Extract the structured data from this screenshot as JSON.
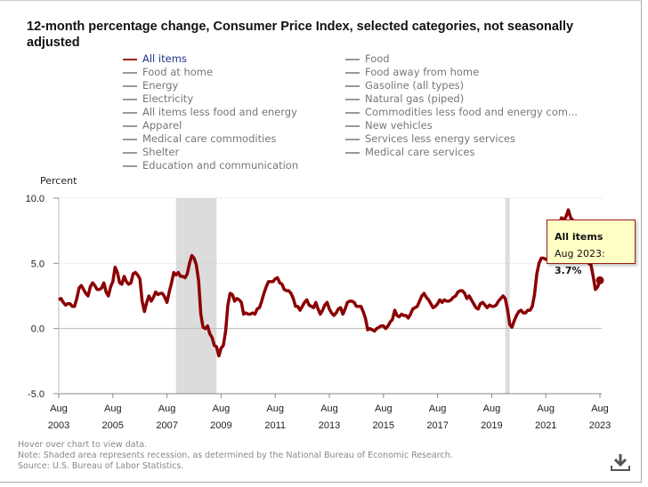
{
  "title": "12-month percentage change, Consumer Price Index, selected categories, not seasonally adjusted",
  "legend": {
    "left": [
      "All items",
      "Food at home",
      "Energy",
      "Electricity",
      "All items less food and energy",
      "Apparel",
      "Medical care commodities",
      "Shelter",
      "Education and communication"
    ],
    "right": [
      "Food",
      "Food away from home",
      "Gasoline (all types)",
      "Natural gas (piped)",
      "Commodities less food and energy com...",
      "New vehicles",
      "Services less energy services",
      "Medical care services"
    ]
  },
  "notes": [
    "Hover over chart to view data.",
    "Note: Shaded area represents recession, as determined by the National Bureau of Economic Research.",
    "Source: U.S. Bureau of Labor Statistics."
  ],
  "tooltip": {
    "series": "All items",
    "label": "Aug 2023: ",
    "value": "3.7%"
  },
  "icons": {
    "download": "download-icon"
  },
  "colors": {
    "series": "#8b0000",
    "recession": "#dcdcdc",
    "tooltip_bg": "#ffffc6"
  },
  "chart_data": {
    "type": "line",
    "title": "12-month percentage change, Consumer Price Index, selected categories, not seasonally adjusted",
    "ylabel": "Percent",
    "ylim": [
      -5,
      10
    ],
    "yticks": [
      "10.0",
      "5.0",
      "0.0",
      "-5.0"
    ],
    "xticks": [
      [
        "Aug",
        "2003"
      ],
      [
        "Aug",
        "2005"
      ],
      [
        "Aug",
        "2007"
      ],
      [
        "Aug",
        "2009"
      ],
      [
        "Aug",
        "2011"
      ],
      [
        "Aug",
        "2013"
      ],
      [
        "Aug",
        "2015"
      ],
      [
        "Aug",
        "2017"
      ],
      [
        "Aug",
        "2019"
      ],
      [
        "Aug",
        "2021"
      ],
      [
        "Aug",
        "2023"
      ]
    ],
    "x_start": "Aug 2003",
    "x_frequency": "monthly",
    "grid": "horizontal dotted",
    "recessions": [
      [
        "Dec 2007",
        "Jun 2009"
      ],
      [
        "Feb 2020",
        "Apr 2020"
      ]
    ],
    "series": [
      {
        "name": "All items",
        "values": [
          2.2,
          2.3,
          2.0,
          1.8,
          1.9,
          1.9,
          1.7,
          1.7,
          2.3,
          3.1,
          3.3,
          3.0,
          2.7,
          2.5,
          3.2,
          3.5,
          3.3,
          3.0,
          3.0,
          3.1,
          3.5,
          2.8,
          2.5,
          3.2,
          3.6,
          4.7,
          4.3,
          3.5,
          3.4,
          4.0,
          3.6,
          3.4,
          3.5,
          4.2,
          4.3,
          4.1,
          3.8,
          2.1,
          1.3,
          2.0,
          2.5,
          2.1,
          2.4,
          2.8,
          2.6,
          2.7,
          2.7,
          2.4,
          2.0,
          2.8,
          3.5,
          4.3,
          4.1,
          4.3,
          4.0,
          4.0,
          3.9,
          4.2,
          5.0,
          5.6,
          5.4,
          4.9,
          3.7,
          1.1,
          0.1,
          0.0,
          0.2,
          -0.4,
          -0.7,
          -1.3,
          -1.4,
          -2.1,
          -1.5,
          -1.3,
          -0.2,
          1.8,
          2.7,
          2.6,
          2.1,
          2.3,
          2.2,
          2.0,
          1.1,
          1.2,
          1.1,
          1.1,
          1.2,
          1.1,
          1.5,
          1.6,
          2.1,
          2.7,
          3.2,
          3.6,
          3.6,
          3.6,
          3.8,
          3.9,
          3.5,
          3.4,
          3.0,
          2.9,
          2.9,
          2.7,
          2.3,
          1.7,
          1.7,
          1.4,
          1.7,
          2.0,
          2.2,
          1.8,
          1.7,
          1.6,
          2.0,
          1.5,
          1.1,
          1.4,
          1.8,
          2.0,
          1.5,
          1.2,
          1.0,
          1.2,
          1.5,
          1.6,
          1.1,
          1.5,
          2.0,
          2.1,
          2.1,
          2.0,
          1.7,
          1.7,
          1.7,
          1.3,
          0.8,
          -0.1,
          0.0,
          -0.1,
          -0.2,
          0.0,
          0.1,
          0.2,
          0.2,
          0.0,
          0.2,
          0.5,
          0.7,
          1.4,
          1.0,
          0.9,
          1.1,
          1.0,
          1.0,
          0.8,
          1.1,
          1.5,
          1.6,
          1.7,
          2.1,
          2.5,
          2.7,
          2.4,
          2.2,
          1.9,
          1.6,
          1.7,
          1.9,
          2.2,
          2.0,
          2.2,
          2.1,
          2.1,
          2.2,
          2.4,
          2.5,
          2.8,
          2.9,
          2.9,
          2.7,
          2.3,
          2.5,
          2.2,
          1.9,
          1.6,
          1.5,
          1.9,
          2.0,
          1.8,
          1.6,
          1.8,
          1.7,
          1.7,
          1.8,
          2.1,
          2.3,
          2.5,
          2.3,
          1.5,
          0.3,
          0.1,
          0.6,
          1.0,
          1.3,
          1.4,
          1.2,
          1.2,
          1.4,
          1.4,
          1.7,
          2.6,
          4.2,
          5.0,
          5.4,
          5.4,
          5.3,
          5.4,
          6.2,
          6.8,
          7.0,
          7.5,
          7.9,
          8.5,
          8.3,
          8.6,
          9.1,
          8.5,
          8.3,
          8.2,
          7.7,
          7.1,
          6.5,
          6.4,
          6.0,
          5.0,
          4.9,
          4.0,
          3.0,
          3.2,
          3.7
        ]
      }
    ]
  }
}
